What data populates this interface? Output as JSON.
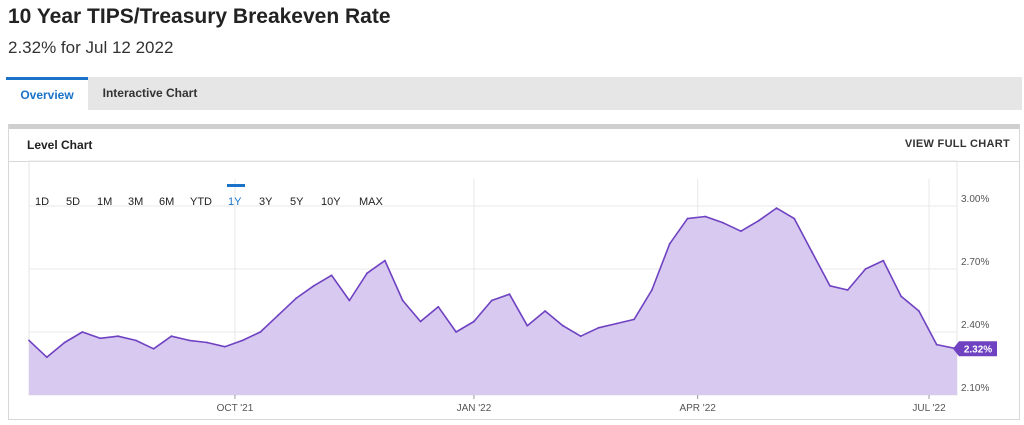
{
  "header": {
    "title": "10 Year TIPS/Treasury Breakeven Rate",
    "subtitle": "2.32% for Jul 12 2022"
  },
  "tabs": [
    {
      "label": "Overview",
      "active": true
    },
    {
      "label": "Interactive Chart",
      "active": false
    }
  ],
  "panel": {
    "title": "Level Chart",
    "view_full_label": "VIEW FULL CHART"
  },
  "ranges": [
    "1D",
    "5D",
    "1M",
    "3M",
    "6M",
    "YTD",
    "1Y",
    "3Y",
    "5Y",
    "10Y",
    "MAX"
  ],
  "active_range": "1Y",
  "colors": {
    "accent": "#1a73c9",
    "line": "#6f42c1",
    "fill": "#d8c9f1",
    "badge": "#6f42c1"
  },
  "chart_data": {
    "type": "area",
    "ylim": [
      2.1,
      3.1
    ],
    "yticks": [
      2.1,
      2.4,
      2.7,
      3.0
    ],
    "ytick_labels": [
      "2.10%",
      "2.40%",
      "2.70%",
      "3.00%"
    ],
    "xtick_labels": [
      "OCT '21",
      "JAN '22",
      "APR '22",
      "JUL '22"
    ],
    "xtick_dates": [
      "2021-10-01",
      "2022-01-03",
      "2022-04-01",
      "2022-07-01"
    ],
    "last_value_label": "2.32%",
    "x": [
      "2021-07-12",
      "2021-07-19",
      "2021-07-26",
      "2021-08-02",
      "2021-08-09",
      "2021-08-16",
      "2021-08-23",
      "2021-08-30",
      "2021-09-06",
      "2021-09-13",
      "2021-09-20",
      "2021-09-27",
      "2021-10-04",
      "2021-10-11",
      "2021-10-18",
      "2021-10-25",
      "2021-11-01",
      "2021-11-08",
      "2021-11-15",
      "2021-11-22",
      "2021-11-29",
      "2021-12-06",
      "2021-12-13",
      "2021-12-20",
      "2021-12-27",
      "2022-01-03",
      "2022-01-10",
      "2022-01-17",
      "2022-01-24",
      "2022-01-31",
      "2022-02-07",
      "2022-02-14",
      "2022-02-21",
      "2022-02-28",
      "2022-03-07",
      "2022-03-14",
      "2022-03-21",
      "2022-03-28",
      "2022-04-04",
      "2022-04-11",
      "2022-04-18",
      "2022-04-25",
      "2022-05-02",
      "2022-05-09",
      "2022-05-16",
      "2022-05-23",
      "2022-05-30",
      "2022-06-06",
      "2022-06-13",
      "2022-06-20",
      "2022-06-27",
      "2022-07-04",
      "2022-07-12"
    ],
    "series": [
      {
        "values": [
          2.36,
          2.28,
          2.35,
          2.4,
          2.37,
          2.38,
          2.36,
          2.32,
          2.38,
          2.36,
          2.35,
          2.33,
          2.36,
          2.4,
          2.48,
          2.56,
          2.62,
          2.67,
          2.55,
          2.68,
          2.74,
          2.55,
          2.45,
          2.52,
          2.4,
          2.45,
          2.55,
          2.58,
          2.43,
          2.5,
          2.43,
          2.38,
          2.42,
          2.44,
          2.46,
          2.6,
          2.82,
          2.94,
          2.95,
          2.92,
          2.88,
          2.93,
          2.99,
          2.94,
          2.78,
          2.62,
          2.6,
          2.7,
          2.74,
          2.57,
          2.5,
          2.34,
          2.32
        ]
      }
    ]
  }
}
